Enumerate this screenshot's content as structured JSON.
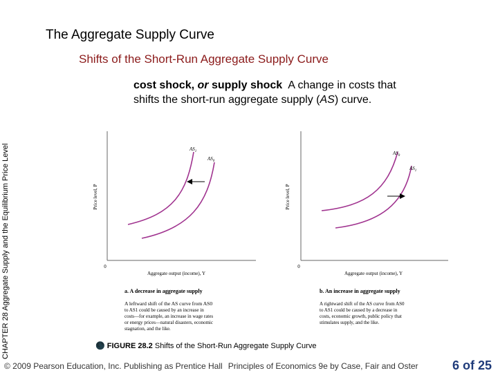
{
  "slide": {
    "title": "The Aggregate Supply Curve",
    "subtitle": "Shifts of the Short-Run Aggregate Supply Curve",
    "side_label": {
      "chapter": "CHAPTER 28",
      "text": "Aggregate Supply and the Equilibrium Price Level"
    },
    "definition": {
      "term_a": "cost shock,",
      "term_or": "or",
      "term_b": "supply shock",
      "text": "A change in costs that shifts the short-run aggregate supply (",
      "as": "AS",
      "text_end": ") curve."
    }
  },
  "figure": {
    "panel_a": {
      "y_axis": "Price level, P",
      "x_axis": "Aggregate output (income), Y",
      "origin": "0",
      "curve_1": "AS",
      "curve_1_sub": "1",
      "curve_0": "AS",
      "curve_0_sub": "0",
      "heading": "a. A decrease in aggregate supply",
      "lines": [
        "A leftward shift of the AS curve from AS0",
        "to AS1 could be caused by an increase in",
        "costs—for example, an increase in wage rates",
        "or energy prices—natural disasters, economic",
        "stagnation, and the like."
      ]
    },
    "panel_b": {
      "y_axis": "Price level, P",
      "x_axis": "Aggregate output (income), Y",
      "origin": "0",
      "curve_0": "AS",
      "curve_0_sub": "0",
      "curve_1": "AS",
      "curve_1_sub": "1",
      "heading": "b. An increase in aggregate supply",
      "lines": [
        "A rightward shift of the AS curve from AS0",
        "to AS1 could be caused by a decrease in",
        "costs, economic growth, public policy that",
        "stimulates supply, and the like."
      ]
    },
    "caption": {
      "icon": "🌑",
      "label": "FIGURE 28.2",
      "text": "Shifts of the Short-Run Aggregate Supply Curve"
    }
  },
  "footer": {
    "copyright": "© 2009 Pearson Education, Inc. Publishing as Prentice Hall",
    "book": "Principles of Economics 9e by Case, Fair and Oster",
    "page": "6 of 25"
  },
  "colors": {
    "subtitle": "#8b1a1a",
    "curve": "#a0338f",
    "page_number": "#1f3b7a"
  }
}
